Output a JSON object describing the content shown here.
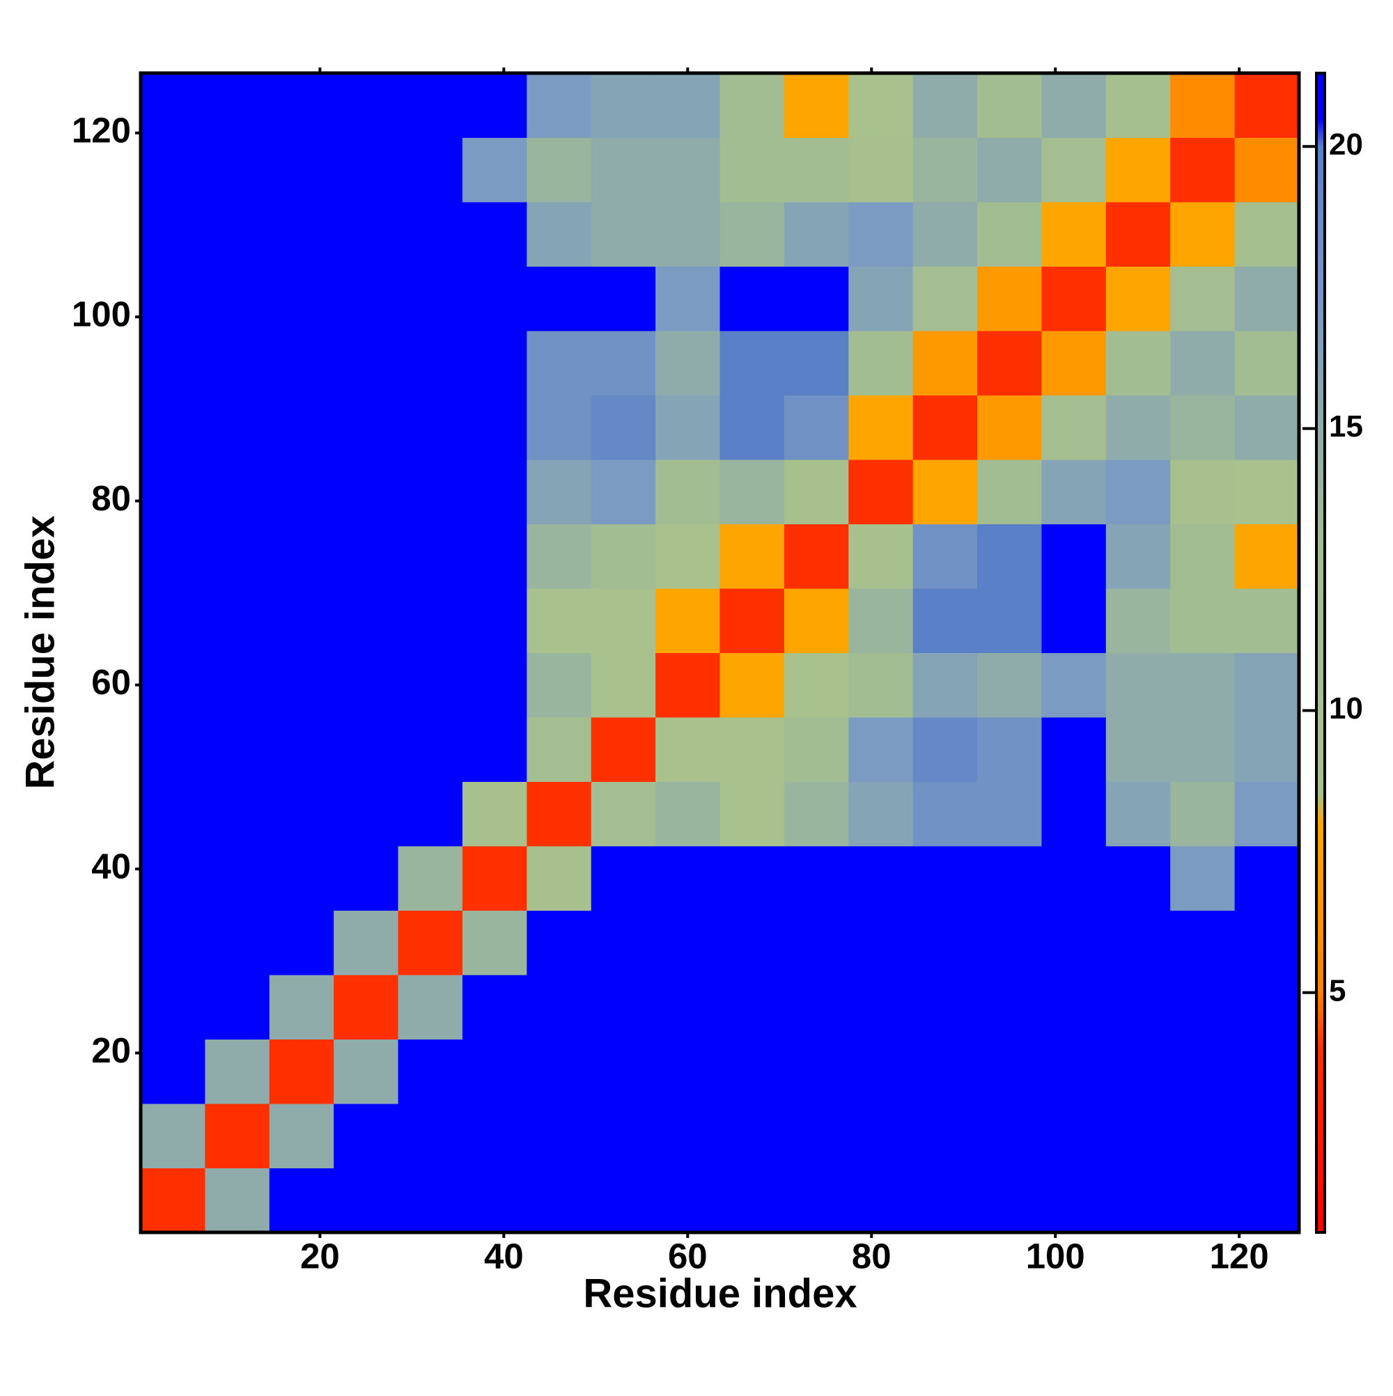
{
  "chart_data": {
    "type": "heatmap",
    "xlabel": "Residue index",
    "ylabel": "Residue index",
    "xbins": [
      0.5,
      7.5,
      14.5,
      21.5,
      28.5,
      35.5,
      42.5,
      49.5,
      56.5,
      63.5,
      70.5,
      77.5,
      84.5,
      91.5,
      98.5,
      105.5,
      112.5,
      119.5,
      126.5
    ],
    "ybins": [
      0.5,
      7.5,
      14.5,
      21.5,
      28.5,
      35.5,
      42.5,
      49.5,
      56.5,
      63.5,
      70.5,
      77.5,
      84.5,
      91.5,
      98.5,
      105.5,
      112.5,
      119.5,
      126.5
    ],
    "z": [
      [
        4,
        15,
        21,
        21,
        21,
        21,
        21,
        21,
        21,
        21,
        21,
        21,
        21,
        21,
        21,
        21,
        21,
        21
      ],
      [
        15,
        4,
        15,
        21,
        21,
        21,
        21,
        21,
        21,
        21,
        21,
        21,
        21,
        21,
        21,
        21,
        21,
        21
      ],
      [
        21,
        15,
        4,
        15,
        21,
        21,
        21,
        21,
        21,
        21,
        21,
        21,
        21,
        21,
        21,
        21,
        21,
        21
      ],
      [
        21,
        21,
        15,
        4,
        15,
        21,
        21,
        21,
        21,
        21,
        21,
        21,
        21,
        21,
        21,
        21,
        21,
        21
      ],
      [
        21,
        21,
        21,
        15,
        4,
        14,
        21,
        21,
        21,
        21,
        21,
        21,
        21,
        21,
        21,
        21,
        21,
        21
      ],
      [
        21,
        21,
        21,
        21,
        14,
        4,
        10,
        21,
        21,
        21,
        21,
        21,
        21,
        21,
        21,
        21,
        17,
        21
      ],
      [
        21,
        21,
        21,
        21,
        21,
        10,
        4,
        12,
        14,
        9,
        14,
        16,
        18,
        18,
        21,
        16,
        14,
        17
      ],
      [
        21,
        21,
        21,
        21,
        21,
        21,
        12,
        4,
        9,
        9,
        13,
        17,
        19,
        18,
        21,
        15,
        15,
        16
      ],
      [
        21,
        21,
        21,
        21,
        21,
        21,
        14,
        9,
        4,
        8,
        9,
        13,
        16,
        15,
        17,
        15,
        15,
        16
      ],
      [
        21,
        21,
        21,
        21,
        21,
        21,
        9,
        9,
        8,
        4,
        8,
        14,
        20,
        20,
        21,
        14,
        13,
        13
      ],
      [
        21,
        21,
        21,
        21,
        21,
        21,
        14,
        13,
        9,
        8,
        4,
        10,
        18,
        20,
        21,
        16,
        13,
        8
      ],
      [
        21,
        21,
        21,
        21,
        21,
        21,
        16,
        17,
        13,
        14,
        10,
        4,
        8,
        13,
        16,
        17,
        10,
        9
      ],
      [
        21,
        21,
        21,
        21,
        21,
        21,
        18,
        19,
        16,
        20,
        18,
        8,
        4,
        7,
        12,
        15,
        14,
        15
      ],
      [
        21,
        21,
        21,
        21,
        21,
        21,
        18,
        18,
        15,
        20,
        20,
        13,
        7,
        4,
        7,
        13,
        15,
        13
      ],
      [
        21,
        21,
        21,
        21,
        21,
        21,
        21,
        21,
        17,
        21,
        21,
        16,
        12,
        7,
        4,
        8,
        12,
        15
      ],
      [
        21,
        21,
        21,
        21,
        21,
        21,
        16,
        15,
        15,
        14,
        16,
        17,
        15,
        13,
        8,
        4,
        8,
        11
      ],
      [
        21,
        21,
        21,
        21,
        21,
        17,
        14,
        15,
        15,
        13,
        13,
        10,
        14,
        15,
        12,
        8,
        4,
        6
      ],
      [
        21,
        21,
        21,
        21,
        21,
        21,
        17,
        16,
        16,
        13,
        8,
        9,
        15,
        13,
        15,
        11,
        6,
        4
      ]
    ],
    "xlim": [
      0.5,
      126.5
    ],
    "ylim": [
      0.5,
      126.5
    ],
    "xticks": [
      20,
      40,
      60,
      80,
      100,
      120
    ],
    "yticks": [
      20,
      40,
      60,
      80,
      100,
      120
    ],
    "zlim": [
      0.75,
      21.3
    ],
    "zticks": [
      5,
      10,
      15,
      20
    ],
    "colorscale": [
      [
        0.75,
        "#ff0000"
      ],
      [
        4,
        "#ff3000"
      ],
      [
        5,
        "#ff8000"
      ],
      [
        8,
        "#ffa500"
      ],
      [
        8.5,
        "#a9c18c"
      ],
      [
        13,
        "#a3bd92"
      ],
      [
        17,
        "#7b9bc2"
      ],
      [
        20,
        "#5a80c8"
      ],
      [
        20.5,
        "#0000ff"
      ],
      [
        21.3,
        "#0000ff"
      ]
    ]
  }
}
